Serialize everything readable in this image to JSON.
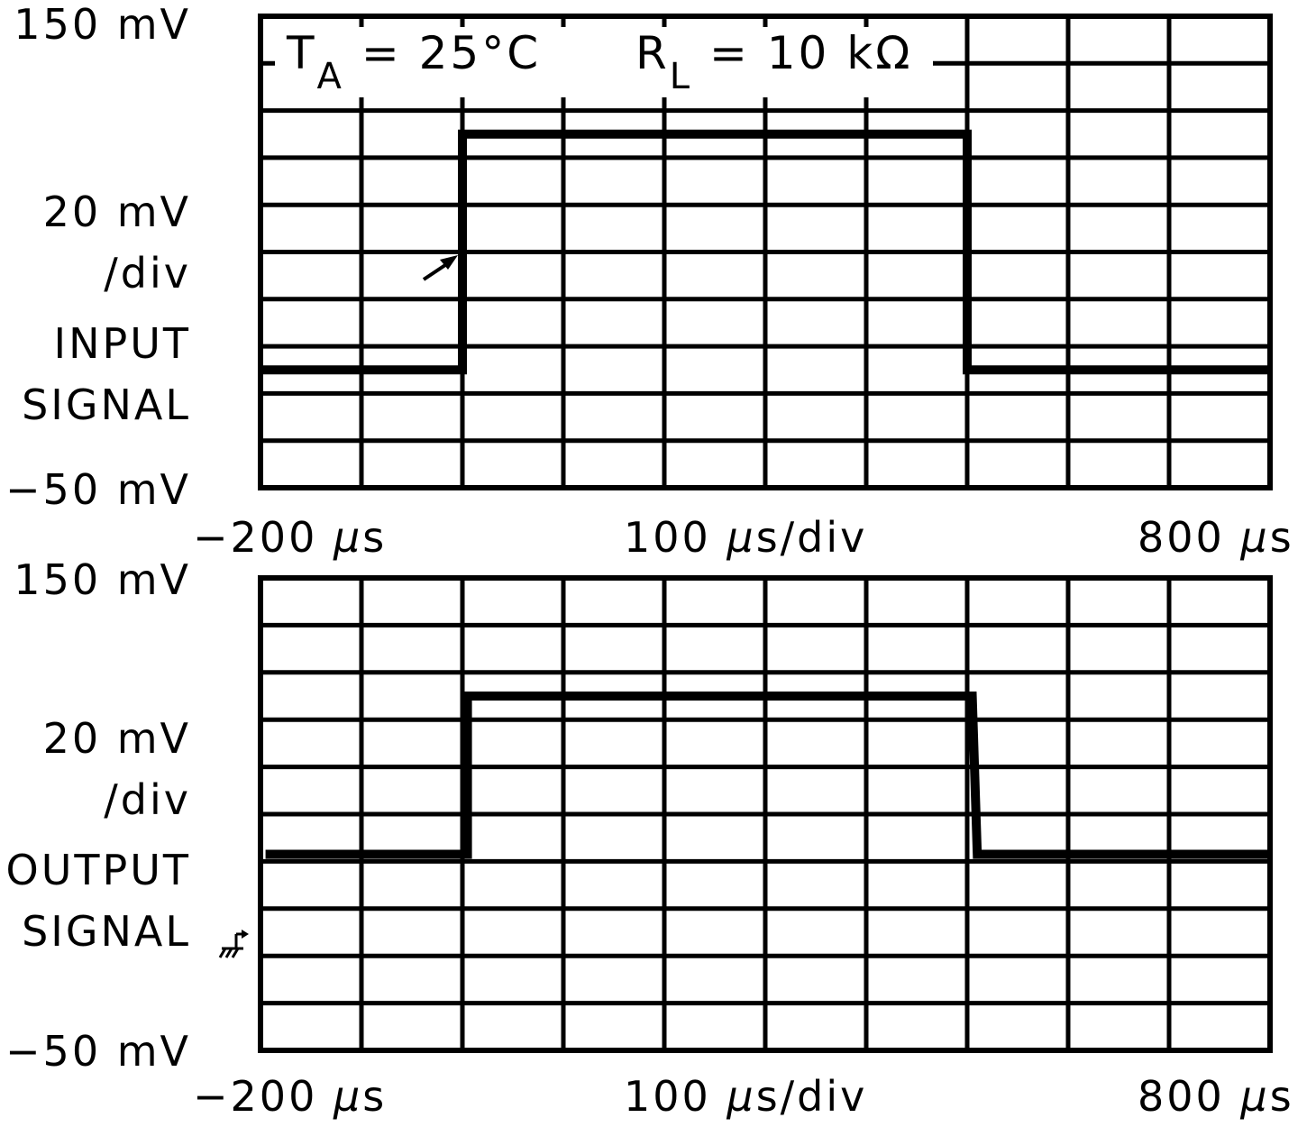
{
  "chart_data": [
    {
      "type": "line",
      "title": "INPUT SIGNAL",
      "annotation": {
        "ta": "T_A = 25°C",
        "rl": "R_L = 10 kΩ"
      },
      "ylabel": "20 mV /div",
      "y_top_label": "150 mV",
      "y_bottom_label": "-50 mV",
      "ylim": [
        -50,
        150
      ],
      "y_per_div_mV": 20,
      "xlabel": "100 µs/div",
      "x_left_label": "-200 µs",
      "x_right_label": "800 µs",
      "xlim": [
        -200,
        800
      ],
      "x_per_div_us": 100,
      "grid": true,
      "reference_line_mV": 50,
      "series": [
        {
          "name": "input",
          "x": [
            -200,
            0,
            0,
            500,
            500,
            800
          ],
          "y": [
            0,
            0,
            100,
            100,
            0,
            0
          ]
        }
      ],
      "arrow_marker": {
        "x_us": -10,
        "y_mV": 50
      }
    },
    {
      "type": "line",
      "title": "OUTPUT SIGNAL",
      "ylabel": "20 mV /div",
      "y_top_label": "150 mV",
      "y_bottom_label": "-50 mV",
      "ylim": [
        -50,
        150
      ],
      "y_per_div_mV": 20,
      "xlabel": "100 µs/div",
      "x_left_label": "-200 µs",
      "x_right_label": "800 µs",
      "xlim": [
        -200,
        800
      ],
      "x_per_div_us": 100,
      "grid": true,
      "reference_line_mV": 50,
      "ground_marker_mV": 0,
      "series": [
        {
          "name": "output",
          "x": [
            -195,
            5,
            5,
            505,
            510,
            800
          ],
          "y": [
            33,
            33,
            100,
            100,
            33,
            33
          ]
        }
      ]
    }
  ],
  "labels": {
    "top": {
      "y_top": "150 mV",
      "per_div_1": "20 mV",
      "per_div_2": "/div",
      "sig_1": "INPUT",
      "sig_2": "SIGNAL",
      "y_bottom": "−50 mV",
      "x_left": "−200 ",
      "x_mid_num": "100 ",
      "x_mid_unit": "s/div",
      "x_right": "800 ",
      "mu": "µ",
      "s": "s",
      "ta_T": "T",
      "ta_sub": "A",
      "ta_rest": " = 25°C",
      "rl_R": "R",
      "rl_sub": "L",
      "rl_rest": " = 10 kΩ"
    },
    "bottom": {
      "y_top": "150 mV",
      "per_div_1": "20 mV",
      "per_div_2": "/div",
      "sig_1": "OUTPUT",
      "sig_2": "SIGNAL",
      "y_bottom": "−50 mV",
      "x_left": "−200 ",
      "x_mid_num": "100 ",
      "x_mid_unit": "s/div",
      "x_right": "800 ",
      "mu": "µ",
      "s": "s"
    }
  }
}
